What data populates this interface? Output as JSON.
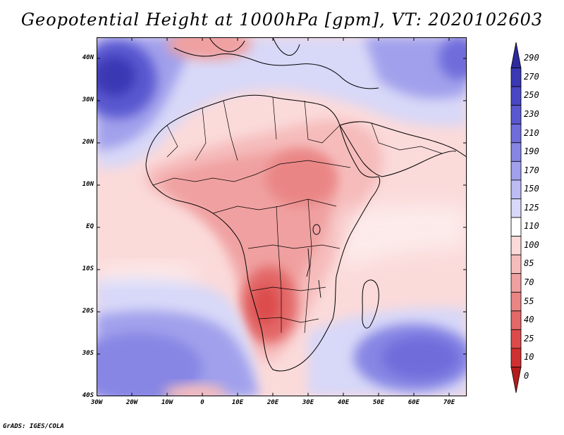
{
  "title": "Geopotential Height at 1000hPa [gpm], VT: 2020102603",
  "footer": "GrADS: IGES/COLA",
  "map": {
    "lat_labels": [
      "40N",
      "30N",
      "20N",
      "10N",
      "EQ",
      "10S",
      "20S",
      "30S",
      "40S"
    ],
    "lon_labels": [
      "30W",
      "20W",
      "10W",
      "0",
      "10E",
      "20E",
      "30E",
      "40E",
      "50E",
      "60E",
      "70E"
    ]
  },
  "colorbar": {
    "labels": [
      "290",
      "270",
      "250",
      "230",
      "210",
      "190",
      "170",
      "150",
      "125",
      "110",
      "100",
      "85",
      "70",
      "55",
      "40",
      "25",
      "10",
      "0"
    ],
    "colors": [
      "#2d2a9e",
      "#3b38b4",
      "#4a47c4",
      "#5a58d0",
      "#6f6ddb",
      "#8786e4",
      "#a1a0ec",
      "#bcbcf2",
      "#d8d8f8",
      "#ffffff",
      "#fbdada",
      "#f6bcbc",
      "#f0a0a0",
      "#ea8585",
      "#e36868",
      "#db4b4b",
      "#cf3030",
      "#b51c1c"
    ]
  },
  "chart_data": {
    "type": "heatmap",
    "title": "Geopotential Height at 1000hPa [gpm], VT: 2020102603",
    "units": "gpm",
    "valid_time": "2020102603",
    "x_ticks": [
      "30W",
      "20W",
      "10W",
      "0",
      "10E",
      "20E",
      "30E",
      "40E",
      "50E",
      "60E",
      "70E"
    ],
    "y_ticks": [
      "40N",
      "30N",
      "20N",
      "10N",
      "EQ",
      "10S",
      "20S",
      "30S",
      "40S"
    ],
    "lon_range": [
      -30,
      75
    ],
    "lat_range": [
      -40,
      45
    ],
    "contour_levels": [
      0,
      10,
      25,
      40,
      55,
      70,
      85,
      100,
      110,
      125,
      150,
      170,
      190,
      210,
      230,
      250,
      270,
      290
    ]
  }
}
